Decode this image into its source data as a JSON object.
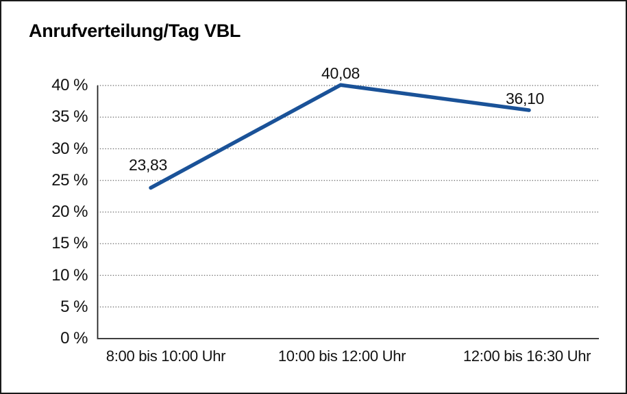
{
  "chart_data": {
    "type": "line",
    "title": "Anrufverteilung/Tag VBL",
    "categories": [
      "8:00 bis 10:00 Uhr",
      "10:00 bis 12:00 Uhr",
      "12:00 bis 16:30 Uhr"
    ],
    "series": [
      {
        "values": [
          23.83,
          40.08,
          36.1
        ],
        "point_labels": [
          "23,83",
          "40,08",
          "36,10"
        ],
        "color": "#1a5298"
      }
    ],
    "ylim": [
      0,
      40
    ],
    "ytick_step": 5,
    "ytick_labels": [
      "0 %",
      "5 %",
      "10 %",
      "15 %",
      "20 %",
      "25 %",
      "30 %",
      "35 %",
      "40 %"
    ],
    "grid": "horizontal-dotted",
    "legend": "none",
    "xlabel": "",
    "ylabel": ""
  },
  "colors": {
    "background": "#ffffff",
    "border": "#1a1a1a",
    "axis": "#222222",
    "baseline": "#3f3f3f",
    "grid": "#6a6a6a",
    "text": "#111111"
  }
}
